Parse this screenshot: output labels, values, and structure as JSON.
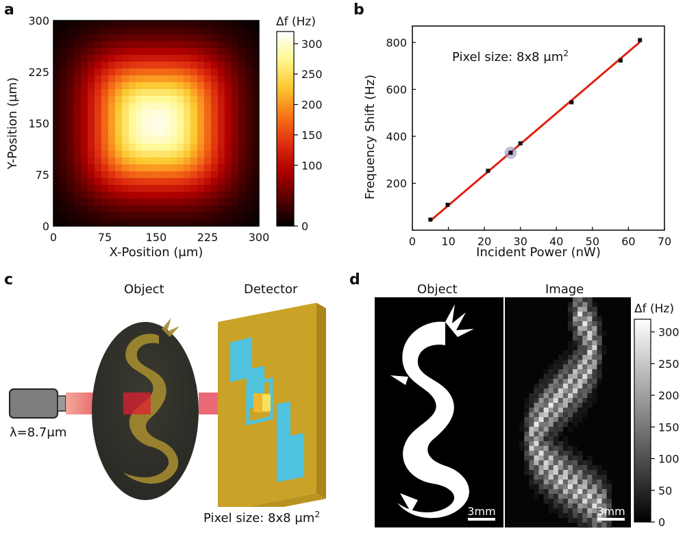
{
  "panels": {
    "a": "a",
    "b": "b",
    "c": "c",
    "d": "d"
  },
  "chart_data": [
    {
      "type": "heatmap",
      "panel": "a",
      "xlabel": "X-Position (μm)",
      "ylabel": "Y-Position (μm)",
      "xlim": [
        0,
        300
      ],
      "ylim": [
        0,
        300
      ],
      "x_ticks": [
        "0",
        "75",
        "150",
        "225",
        "300"
      ],
      "y_ticks": [
        "0",
        "75",
        "150",
        "225",
        "300"
      ],
      "colorbar_label": "Δf (Hz)",
      "colorbar_ticks": [
        "0",
        "100",
        "150",
        "200",
        "250",
        "300"
      ],
      "colorbar_range": [
        0,
        320
      ],
      "grid_size": 30,
      "peak": 310,
      "colormap": [
        "#000000",
        "#5a0000",
        "#b00000",
        "#e03010",
        "#f87818",
        "#fcc830",
        "#fff890",
        "#ffffff"
      ]
    },
    {
      "type": "scatter",
      "panel": "b",
      "xlabel": "Incident Power (nW)",
      "ylabel": "Frequency Shift (Hz)",
      "xlim": [
        0,
        70
      ],
      "ylim": [
        0,
        870
      ],
      "x_ticks": [
        0,
        10,
        20,
        30,
        40,
        50,
        60,
        70
      ],
      "y_ticks": [
        200,
        400,
        600,
        800
      ],
      "annotation": "Pixel size: 8x8 μm",
      "annotation_sup": "2",
      "points": [
        {
          "x": 5.0,
          "y": 45
        },
        {
          "x": 9.8,
          "y": 108
        },
        {
          "x": 21.0,
          "y": 253
        },
        {
          "x": 27.3,
          "y": 330
        },
        {
          "x": 30.0,
          "y": 370
        },
        {
          "x": 44.2,
          "y": 545
        },
        {
          "x": 57.8,
          "y": 723
        },
        {
          "x": 63.2,
          "y": 810
        }
      ],
      "highlight_x": 27.3,
      "highlight_y": 330,
      "fit_line": {
        "x0": 5.0,
        "y0": 40,
        "x1": 63.2,
        "y1": 802
      },
      "line_color": "#e02010"
    },
    {
      "type": "heatmap",
      "panel": "d",
      "titles": [
        "Object",
        "Image"
      ],
      "colorbar_label": "Δf (Hz)",
      "colorbar_ticks": [
        "0",
        "50",
        "100",
        "150",
        "200",
        "250",
        "300"
      ],
      "colorbar_range": [
        0,
        320
      ],
      "scalebar_labels": [
        "3mm",
        "3mm"
      ]
    }
  ],
  "panel_c": {
    "object_label": "Object",
    "detector_label": "Detector",
    "wavelength": "λ=8.7μm",
    "pixel_size": "Pixel size: 8x8 μm",
    "pixel_size_sup": "2",
    "gold": "#c9a227",
    "cyan": "#4fc3e0"
  }
}
